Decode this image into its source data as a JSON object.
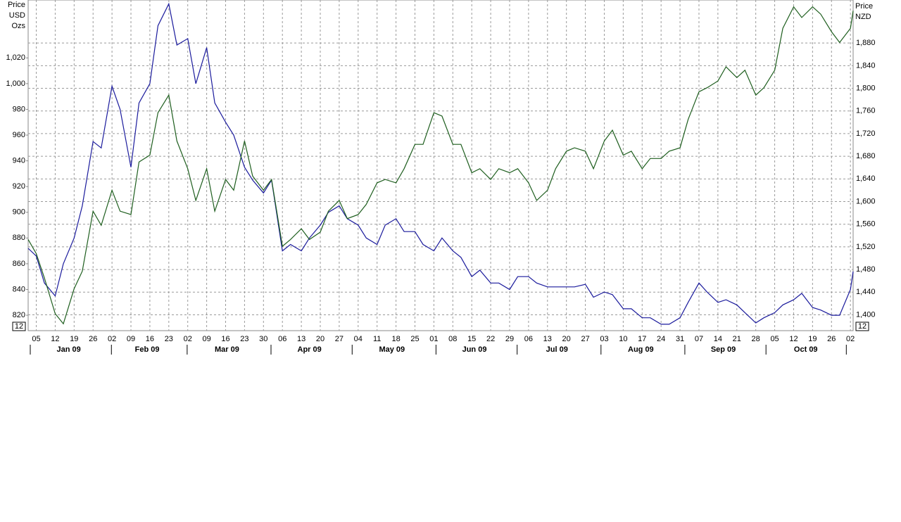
{
  "chart_data": {
    "type": "line",
    "ylabel": [
      "Price",
      "USD",
      "Ozs"
    ],
    "y2label": [
      "Price",
      "NZD"
    ],
    "y_corner_label": "12",
    "y2_corner_label": "12",
    "x": [
      "2009-01-02",
      "2009-01-05",
      "2009-01-08",
      "2009-01-12",
      "2009-01-15",
      "2009-01-19",
      "2009-01-22",
      "2009-01-26",
      "2009-01-29",
      "2009-02-02",
      "2009-02-05",
      "2009-02-09",
      "2009-02-12",
      "2009-02-16",
      "2009-02-19",
      "2009-02-23",
      "2009-02-26",
      "2009-03-02",
      "2009-03-05",
      "2009-03-09",
      "2009-03-12",
      "2009-03-16",
      "2009-03-19",
      "2009-03-23",
      "2009-03-26",
      "2009-03-30",
      "2009-04-02",
      "2009-04-06",
      "2009-04-09",
      "2009-04-13",
      "2009-04-16",
      "2009-04-20",
      "2009-04-23",
      "2009-04-27",
      "2009-04-30",
      "2009-05-04",
      "2009-05-07",
      "2009-05-11",
      "2009-05-14",
      "2009-05-18",
      "2009-05-21",
      "2009-05-25",
      "2009-05-28",
      "2009-06-01",
      "2009-06-04",
      "2009-06-08",
      "2009-06-11",
      "2009-06-15",
      "2009-06-18",
      "2009-06-22",
      "2009-06-25",
      "2009-06-29",
      "2009-07-02",
      "2009-07-06",
      "2009-07-09",
      "2009-07-13",
      "2009-07-16",
      "2009-07-20",
      "2009-07-23",
      "2009-07-27",
      "2009-07-30",
      "2009-08-03",
      "2009-08-06",
      "2009-08-10",
      "2009-08-13",
      "2009-08-17",
      "2009-08-20",
      "2009-08-24",
      "2009-08-27",
      "2009-08-31",
      "2009-09-03",
      "2009-09-07",
      "2009-09-10",
      "2009-09-14",
      "2009-09-17",
      "2009-09-21",
      "2009-09-24",
      "2009-09-28",
      "2009-10-01",
      "2009-10-05",
      "2009-10-08",
      "2009-10-12",
      "2009-10-15",
      "2009-10-19",
      "2009-10-22",
      "2009-10-26",
      "2009-10-29",
      "2009-11-02",
      "2009-11-03"
    ],
    "series": [
      {
        "name": "USD",
        "color": "#1a1a9c",
        "values": [
          872,
          866,
          845,
          835,
          860,
          880,
          905,
          955,
          950,
          998,
          980,
          935,
          985,
          1000,
          1045,
          1062,
          1030,
          1035,
          1000,
          1028,
          985,
          970,
          960,
          935,
          925,
          915,
          925,
          870,
          875,
          870,
          880,
          890,
          900,
          905,
          895,
          890,
          880,
          875,
          890,
          895,
          885,
          885,
          875,
          870,
          880,
          870,
          865,
          850,
          855,
          845,
          845,
          840,
          850,
          850,
          845,
          842,
          842,
          842,
          842,
          844,
          834,
          838,
          836,
          825,
          825,
          818,
          818,
          813,
          813,
          818,
          830,
          845,
          838,
          830,
          832,
          828,
          822,
          814,
          818,
          822,
          828,
          832,
          837,
          826,
          824,
          820,
          820,
          840,
          854
        ]
      },
      {
        "name": "NZD",
        "color": "#1e5e1e",
        "axis": "y2",
        "values": [
          1533,
          1508,
          1465,
          1402,
          1384,
          1446,
          1477,
          1583,
          1558,
          1620,
          1583,
          1577,
          1670,
          1682,
          1757,
          1788,
          1707,
          1658,
          1602,
          1658,
          1583,
          1639,
          1620,
          1707,
          1645,
          1620,
          1639,
          1521,
          1533,
          1552,
          1533,
          1546,
          1583,
          1602,
          1570,
          1577,
          1595,
          1633,
          1639,
          1633,
          1658,
          1701,
          1701,
          1757,
          1751,
          1701,
          1701,
          1651,
          1658,
          1639,
          1658,
          1651,
          1658,
          1633,
          1602,
          1620,
          1658,
          1689,
          1695,
          1689,
          1658,
          1707,
          1726,
          1682,
          1689,
          1658,
          1676,
          1676,
          1689,
          1695,
          1745,
          1794,
          1801,
          1813,
          1838,
          1819,
          1832,
          1788,
          1801,
          1832,
          1906,
          1944,
          1925,
          1944,
          1931,
          1900,
          1881,
          1906,
          1937
        ]
      }
    ],
    "xlim": [
      "2009-01-02",
      "2009-11-03"
    ],
    "xticks": [
      {
        "value": "2009-01-05",
        "label": "05"
      },
      {
        "value": "2009-01-12",
        "label": "12"
      },
      {
        "value": "2009-01-19",
        "label": "19"
      },
      {
        "value": "2009-01-26",
        "label": "26"
      },
      {
        "value": "2009-02-02",
        "label": "02"
      },
      {
        "value": "2009-02-09",
        "label": "09"
      },
      {
        "value": "2009-02-16",
        "label": "16"
      },
      {
        "value": "2009-02-23",
        "label": "23"
      },
      {
        "value": "2009-03-02",
        "label": "02"
      },
      {
        "value": "2009-03-09",
        "label": "09"
      },
      {
        "value": "2009-03-16",
        "label": "16"
      },
      {
        "value": "2009-03-23",
        "label": "23"
      },
      {
        "value": "2009-03-30",
        "label": "30"
      },
      {
        "value": "2009-04-06",
        "label": "06"
      },
      {
        "value": "2009-04-13",
        "label": "13"
      },
      {
        "value": "2009-04-20",
        "label": "20"
      },
      {
        "value": "2009-04-27",
        "label": "27"
      },
      {
        "value": "2009-05-04",
        "label": "04"
      },
      {
        "value": "2009-05-11",
        "label": "11"
      },
      {
        "value": "2009-05-18",
        "label": "18"
      },
      {
        "value": "2009-05-25",
        "label": "25"
      },
      {
        "value": "2009-06-01",
        "label": "01"
      },
      {
        "value": "2009-06-08",
        "label": "08"
      },
      {
        "value": "2009-06-15",
        "label": "15"
      },
      {
        "value": "2009-06-22",
        "label": "22"
      },
      {
        "value": "2009-06-29",
        "label": "29"
      },
      {
        "value": "2009-07-06",
        "label": "06"
      },
      {
        "value": "2009-07-13",
        "label": "13"
      },
      {
        "value": "2009-07-20",
        "label": "20"
      },
      {
        "value": "2009-07-27",
        "label": "27"
      },
      {
        "value": "2009-08-03",
        "label": "03"
      },
      {
        "value": "2009-08-10",
        "label": "10"
      },
      {
        "value": "2009-08-17",
        "label": "17"
      },
      {
        "value": "2009-08-24",
        "label": "24"
      },
      {
        "value": "2009-08-31",
        "label": "31"
      },
      {
        "value": "2009-09-07",
        "label": "07"
      },
      {
        "value": "2009-09-14",
        "label": "14"
      },
      {
        "value": "2009-09-21",
        "label": "21"
      },
      {
        "value": "2009-09-28",
        "label": "28"
      },
      {
        "value": "2009-10-05",
        "label": "05"
      },
      {
        "value": "2009-10-12",
        "label": "12"
      },
      {
        "value": "2009-10-19",
        "label": "19"
      },
      {
        "value": "2009-10-26",
        "label": "26"
      },
      {
        "value": "2009-11-02",
        "label": "02"
      }
    ],
    "months": [
      {
        "value": "2009-01",
        "label": "Jan 09"
      },
      {
        "value": "2009-02",
        "label": "Feb 09"
      },
      {
        "value": "2009-03",
        "label": "Mar 09"
      },
      {
        "value": "2009-04",
        "label": "Apr 09"
      },
      {
        "value": "2009-05",
        "label": "May 09"
      },
      {
        "value": "2009-06",
        "label": "Jun 09"
      },
      {
        "value": "2009-07",
        "label": "Jul 09"
      },
      {
        "value": "2009-08",
        "label": "Aug 09"
      },
      {
        "value": "2009-09",
        "label": "Sep 09"
      },
      {
        "value": "2009-10",
        "label": "Oct 09"
      }
    ],
    "ylim": [
      808,
      1065
    ],
    "yticks": [
      820,
      840,
      860,
      880,
      900,
      920,
      940,
      960,
      980,
      {
        "value": 1000,
        "label": "1,000"
      },
      {
        "value": 1020,
        "label": "1,020"
      }
    ],
    "y2lim": [
      1372,
      1956
    ],
    "y2ticks": [
      {
        "value": 1400,
        "label": "1,400"
      },
      {
        "value": 1440,
        "label": "1,440"
      },
      {
        "value": 1480,
        "label": "1,480"
      },
      {
        "value": 1520,
        "label": "1,520"
      },
      {
        "value": 1560,
        "label": "1,560"
      },
      {
        "value": 1600,
        "label": "1,600"
      },
      {
        "value": 1640,
        "label": "1,640"
      },
      {
        "value": 1680,
        "label": "1,680"
      },
      {
        "value": 1720,
        "label": "1,720"
      },
      {
        "value": 1760,
        "label": "1,760"
      },
      {
        "value": 1800,
        "label": "1,800"
      },
      {
        "value": 1840,
        "label": "1,840"
      },
      {
        "value": 1880,
        "label": "1,880"
      }
    ],
    "grid": true
  }
}
